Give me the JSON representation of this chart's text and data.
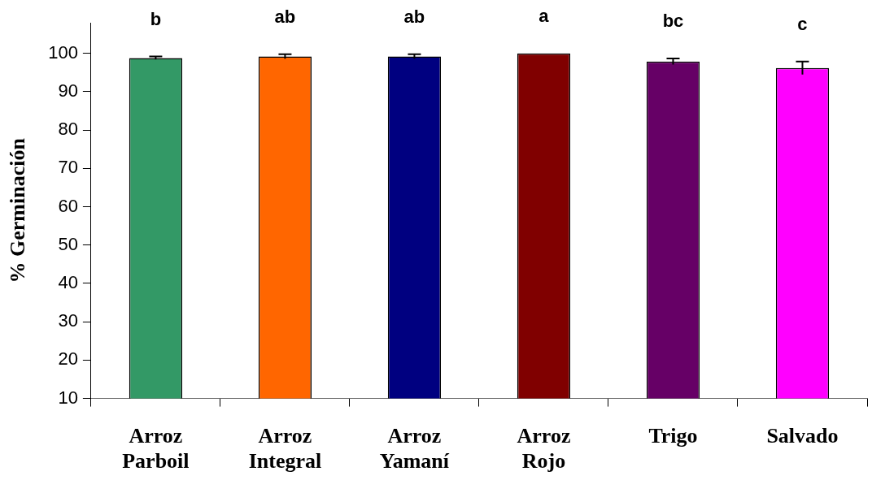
{
  "chart_data": {
    "type": "bar",
    "ylabel": "% Germinación",
    "categories": [
      "Arroz Parboil",
      "Arroz Integral",
      "Arroz Yamaní",
      "Arroz Rojo",
      "Trigo",
      "Salvado"
    ],
    "values": [
      98.8,
      99.2,
      99.2,
      100,
      97.9,
      96.2
    ],
    "colors": [
      "#339966",
      "#ff6600",
      "#000080",
      "#800000",
      "#660066",
      "#ff00ff"
    ],
    "errors": [
      0.4,
      0.6,
      0.6,
      null,
      0.8,
      1.7
    ],
    "ylim": [
      10,
      108
    ],
    "yticks": [
      10,
      20,
      30,
      40,
      50,
      60,
      70,
      80,
      90,
      100
    ],
    "grid": false,
    "legend": false,
    "annotations": [
      "b",
      "ab",
      "ab",
      "a",
      "bc",
      "c"
    ]
  }
}
